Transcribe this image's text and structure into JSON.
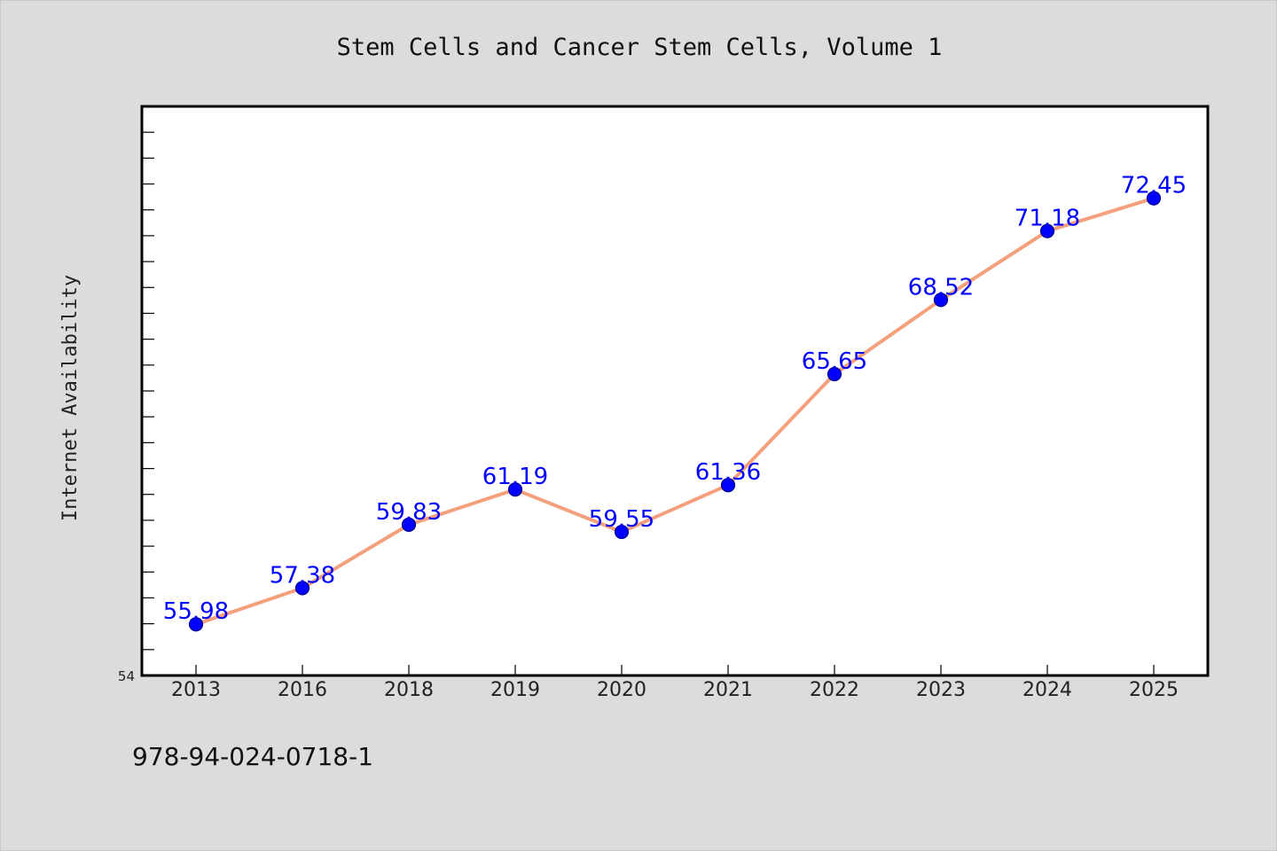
{
  "chart_data": {
    "type": "line",
    "title": "Stem Cells and Cancer Stem Cells, Volume 1",
    "xlabel": "",
    "ylabel": "Internet Availability",
    "categories": [
      "2013",
      "2016",
      "2018",
      "2019",
      "2020",
      "2021",
      "2022",
      "2023",
      "2024",
      "2025"
    ],
    "series": [
      {
        "values": [
          55.98,
          57.38,
          59.83,
          61.19,
          59.55,
          61.36,
          65.65,
          68.52,
          71.18,
          72.45
        ],
        "labels": [
          "55.98",
          "57.38",
          "59.83",
          "61.19",
          "59.55",
          "61.36",
          "65.65",
          "68.52",
          "71.18",
          "72.45"
        ],
        "line_color": "#f4a07c",
        "marker_color": "#0000ff"
      }
    ],
    "ylim": [
      54,
      76
    ],
    "y_tick_labels": [
      "54"
    ],
    "grid": false,
    "legend": "none"
  },
  "footer": {
    "isbn": "978-94-024-0718-1"
  },
  "colors": {
    "background": "#dcdcdc",
    "plot_background": "#ffffff",
    "axis": "#000000"
  }
}
